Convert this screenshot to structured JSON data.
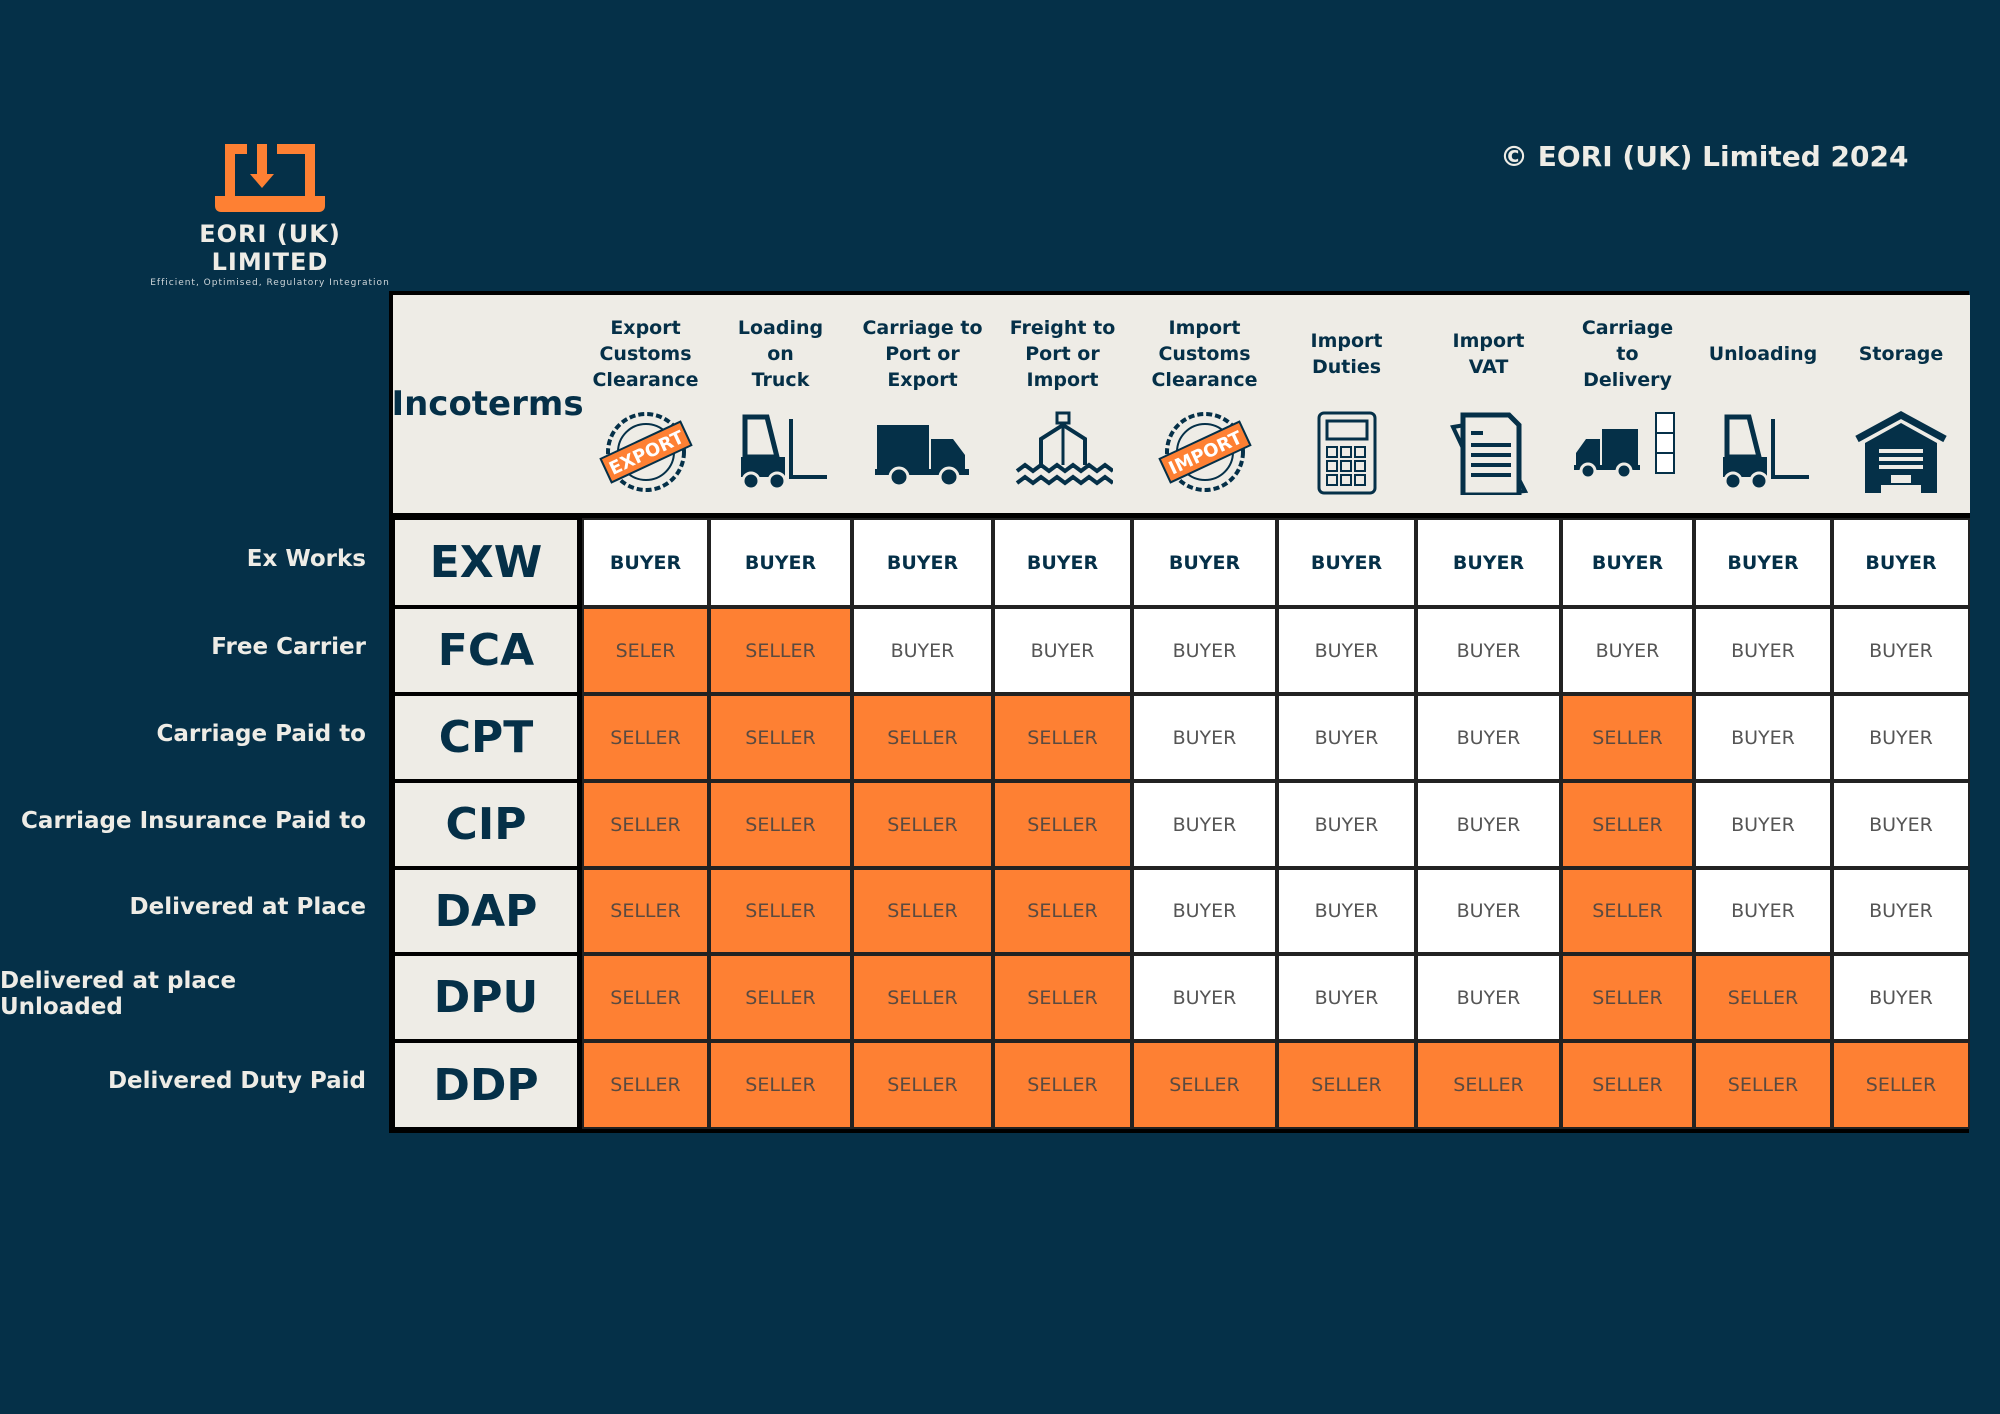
{
  "logo": {
    "name": "EORI (UK) LIMITED",
    "tagline": "Efficient, Optimised, Regulatory Integration"
  },
  "copyright": "© EORI (UK) Limited 2024",
  "colors": {
    "background": "#053048",
    "seller": "#fe8033",
    "buyer": "#ffffff",
    "header": "#eeece6"
  },
  "table": {
    "corner": "Incoterms",
    "columns": [
      {
        "label": "Export\nCustoms\nClearance",
        "icon": "export-stamp-icon",
        "stamp": "EXPORT"
      },
      {
        "label": "Loading\non\nTruck",
        "icon": "forklift-icon"
      },
      {
        "label": "Carriage to\nPort or\nExport",
        "icon": "truck-icon"
      },
      {
        "label": "Freight to\nPort or\nImport",
        "icon": "ship-icon"
      },
      {
        "label": "Import\nCustoms\nClearance",
        "icon": "import-stamp-icon",
        "stamp": "IMPORT"
      },
      {
        "label": "Import\nDuties",
        "icon": "calculator-icon"
      },
      {
        "label": "Import\nVAT",
        "icon": "documents-icon"
      },
      {
        "label": "Carriage\nto\nDelivery",
        "icon": "delivery-truck-icon"
      },
      {
        "label": "Unloading",
        "icon": "forklift-icon"
      },
      {
        "label": "Storage",
        "icon": "warehouse-icon"
      }
    ],
    "rows": [
      {
        "name": "Ex Works",
        "code": "EXW",
        "cells": [
          "BUYER",
          "BUYER",
          "BUYER",
          "BUYER",
          "BUYER",
          "BUYER",
          "BUYER",
          "BUYER",
          "BUYER",
          "BUYER"
        ]
      },
      {
        "name": "Free Carrier",
        "code": "FCA",
        "cells": [
          "SELER",
          "SELLER",
          "BUYER",
          "BUYER",
          "BUYER",
          "BUYER",
          "BUYER",
          "BUYER",
          "BUYER",
          "BUYER"
        ]
      },
      {
        "name": "Carriage Paid to",
        "code": "CPT",
        "cells": [
          "SELLER",
          "SELLER",
          "SELLER",
          "SELLER",
          "BUYER",
          "BUYER",
          "BUYER",
          "SELLER",
          "BUYER",
          "BUYER"
        ]
      },
      {
        "name": "Carriage Insurance Paid to",
        "code": "CIP",
        "cells": [
          "SELLER",
          "SELLER",
          "SELLER",
          "SELLER",
          "BUYER",
          "BUYER",
          "BUYER",
          "SELLER",
          "BUYER",
          "BUYER"
        ]
      },
      {
        "name": "Delivered at Place",
        "code": "DAP",
        "cells": [
          "SELLER",
          "SELLER",
          "SELLER",
          "SELLER",
          "BUYER",
          "BUYER",
          "BUYER",
          "SELLER",
          "BUYER",
          "BUYER"
        ]
      },
      {
        "name": "Delivered at place Unloaded",
        "code": "DPU",
        "cells": [
          "SELLER",
          "SELLER",
          "SELLER",
          "SELLER",
          "BUYER",
          "BUYER",
          "BUYER",
          "SELLER",
          "SELLER",
          "BUYER"
        ]
      },
      {
        "name": "Delivered Duty Paid",
        "code": "DDP",
        "cells": [
          "SELLER",
          "SELLER",
          "SELLER",
          "SELLER",
          "SELLER",
          "SELLER",
          "SELLER",
          "SELLER",
          "SELLER",
          "SELLER"
        ]
      }
    ]
  }
}
